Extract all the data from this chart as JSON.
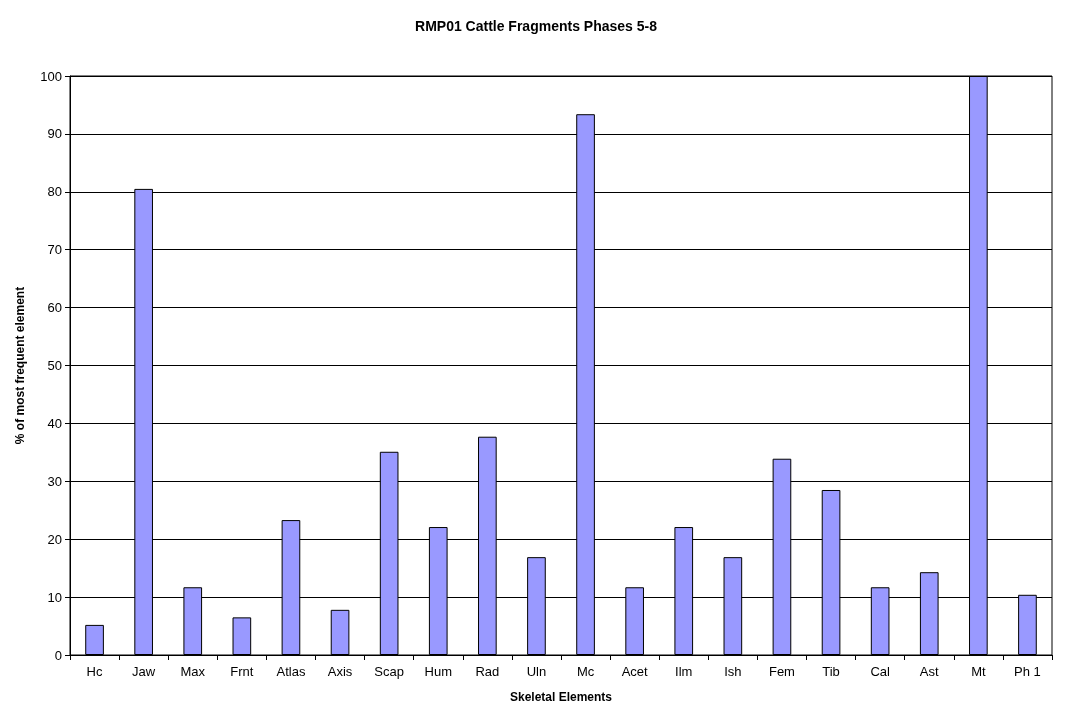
{
  "chart_data": {
    "type": "bar",
    "title": "RMP01 Cattle Fragments Phases 5-8",
    "xlabel": "Skeletal Elements",
    "ylabel": "% of most frequent element",
    "categories": [
      "Hc",
      "Jaw",
      "Max",
      "Frnt",
      "Atlas",
      "Axis",
      "Scap",
      "Hum",
      "Rad",
      "Uln",
      "Mc",
      "Acet",
      "Ilm",
      "Ish",
      "Fem",
      "Tib",
      "Cal",
      "Ast",
      "Mt",
      "Ph 1"
    ],
    "values": [
      5.2,
      80.5,
      11.7,
      6.5,
      23.3,
      7.8,
      35.1,
      22.1,
      37.7,
      16.9,
      93.4,
      11.7,
      22.1,
      16.9,
      33.9,
      28.5,
      11.7,
      14.3,
      100,
      10.4
    ],
    "color": "#9999ff",
    "ylim": [
      0,
      100
    ],
    "yticks": [
      0,
      10,
      20,
      30,
      40,
      50,
      60,
      70,
      80,
      90,
      100
    ],
    "grid": "y"
  }
}
